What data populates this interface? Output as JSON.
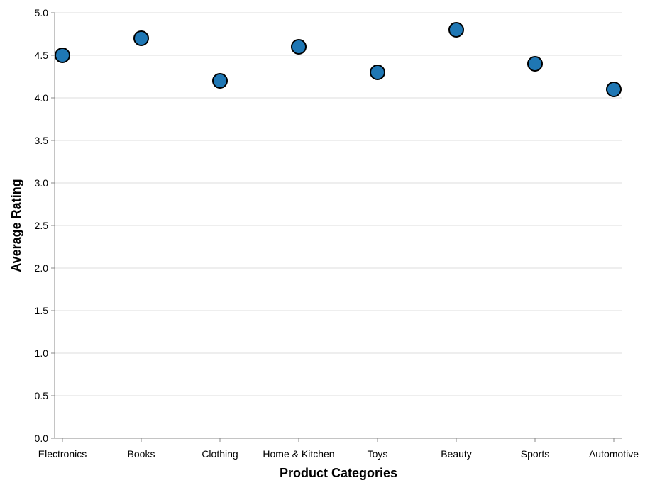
{
  "chart_data": {
    "type": "scatter",
    "title": "",
    "xlabel": "Product Categories",
    "ylabel": "Average Rating",
    "categories": [
      "Electronics",
      "Books",
      "Clothing",
      "Home & Kitchen",
      "Toys",
      "Beauty",
      "Sports",
      "Automotive"
    ],
    "values": [
      4.5,
      4.7,
      4.2,
      4.6,
      4.3,
      4.8,
      4.4,
      4.1
    ],
    "ylim": [
      0,
      5
    ],
    "yticks": [
      0.0,
      0.5,
      1.0,
      1.5,
      2.0,
      2.5,
      3.0,
      3.5,
      4.0,
      4.5,
      5.0
    ],
    "ytick_labels": [
      "0.0",
      "0.5",
      "1.0",
      "1.5",
      "2.0",
      "2.5",
      "3.0",
      "3.5",
      "4.0",
      "4.5",
      "5.0"
    ],
    "grid": true,
    "point_color": "#1f77b4",
    "point_stroke": "#000000",
    "grid_color": "#dddddd",
    "axis_color": "#888888"
  }
}
